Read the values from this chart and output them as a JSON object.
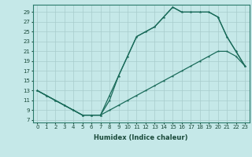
{
  "xlabel": "Humidex (Indice chaleur)",
  "bg_color": "#c5e8e8",
  "line_color": "#1a6b5a",
  "grid_color": "#a8cccc",
  "xticks": [
    0,
    1,
    2,
    3,
    4,
    5,
    6,
    7,
    8,
    9,
    10,
    11,
    12,
    13,
    14,
    15,
    16,
    17,
    18,
    19,
    20,
    21,
    22,
    23
  ],
  "yticks": [
    7,
    9,
    11,
    13,
    15,
    17,
    19,
    21,
    23,
    25,
    27,
    29
  ],
  "xlim": [
    -0.5,
    23.5
  ],
  "ylim": [
    6.5,
    30.5
  ],
  "line1_x": [
    0,
    1,
    2,
    3,
    4,
    5,
    6,
    7,
    8,
    9,
    10,
    11,
    12,
    13,
    14,
    15,
    16,
    17,
    18,
    19,
    20,
    21,
    22,
    23
  ],
  "line1_y": [
    13,
    12,
    11,
    10,
    9,
    8,
    8,
    8,
    11,
    16,
    20,
    24,
    25,
    26,
    28,
    30,
    29,
    29,
    29,
    29,
    28,
    24,
    21,
    18
  ],
  "line2_x": [
    0,
    1,
    2,
    3,
    4,
    5,
    6,
    7,
    8,
    9,
    10,
    11,
    12,
    13,
    14,
    15,
    16,
    17,
    18,
    19,
    20,
    21,
    22,
    23
  ],
  "line2_y": [
    13,
    12,
    11,
    10,
    9,
    8,
    8,
    8,
    12,
    16,
    20,
    24,
    25,
    26,
    28,
    30,
    29,
    29,
    29,
    29,
    28,
    24,
    21,
    18
  ],
  "line3_x": [
    0,
    1,
    2,
    3,
    4,
    5,
    6,
    7,
    8,
    9,
    10,
    11,
    12,
    13,
    14,
    15,
    16,
    17,
    18,
    19,
    20,
    21,
    22,
    23
  ],
  "line3_y": [
    13,
    12,
    11,
    10,
    9,
    8,
    8,
    8,
    9,
    10,
    11,
    12,
    13,
    14,
    15,
    16,
    17,
    18,
    19,
    20,
    21,
    21,
    20,
    18
  ],
  "tick_fontsize": 5.0,
  "xlabel_fontsize": 6.0,
  "linewidth": 0.9,
  "markersize": 2.5
}
